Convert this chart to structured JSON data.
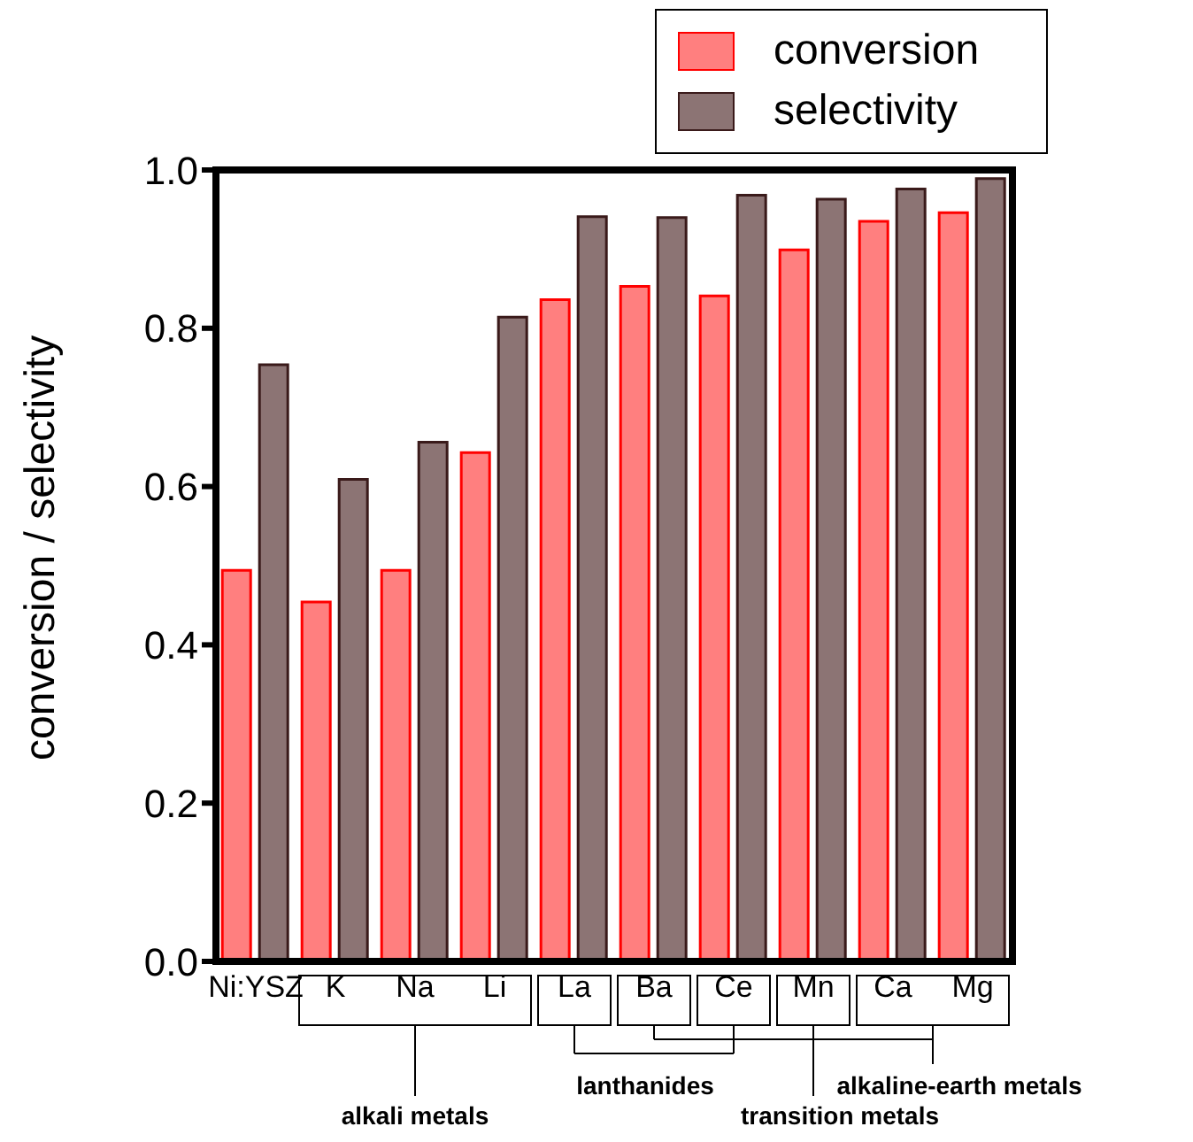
{
  "chart_data": {
    "type": "bar",
    "ylabel": "conversion / selectivity",
    "categories": [
      "Ni:YSZ",
      "K",
      "Na",
      "Li",
      "La",
      "Ba",
      "Ce",
      "Mn",
      "Ca",
      "Mg"
    ],
    "series": [
      {
        "name": "conversion",
        "color": "#ff7f7f",
        "values": [
          0.494,
          0.454,
          0.494,
          0.643,
          0.836,
          0.853,
          0.841,
          0.899,
          0.935,
          0.946
        ]
      },
      {
        "name": "selectivity",
        "color": "#8c7474",
        "values": [
          0.754,
          0.609,
          0.656,
          0.814,
          0.941,
          0.94,
          0.968,
          0.963,
          0.976,
          0.989
        ]
      }
    ],
    "ylim": [
      0,
      1
    ],
    "yticks": [
      {
        "value": 0,
        "label": "0.0"
      },
      {
        "value": 0.2,
        "label": "0.2"
      },
      {
        "value": 0.4,
        "label": "0.4"
      },
      {
        "value": 0.6,
        "label": "0.6"
      },
      {
        "value": 0.8,
        "label": "0.8"
      },
      {
        "value": 1,
        "label": "1.0"
      }
    ],
    "grid": false,
    "legend": "top right",
    "annotations": [
      "alkali metals",
      "lanthanides",
      "transition metals",
      "alkaline-earth metals"
    ]
  }
}
